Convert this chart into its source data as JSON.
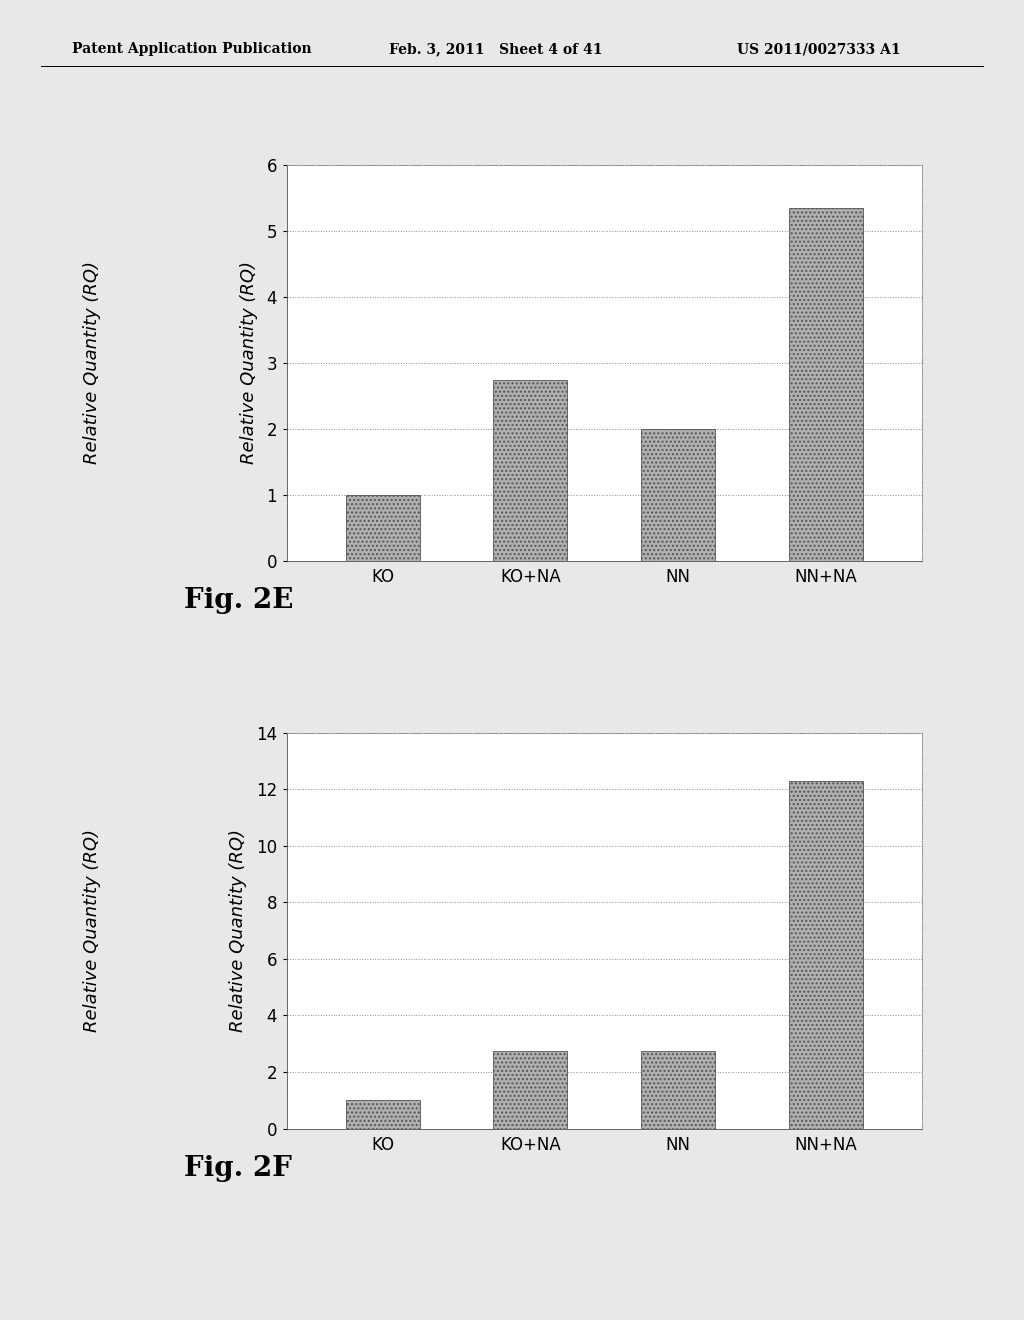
{
  "header_left": "Patent Application Publication",
  "header_mid": "Feb. 3, 2011   Sheet 4 of 41",
  "header_right": "US 2011/0027333 A1",
  "chart1": {
    "categories": [
      "KO",
      "KO+NA",
      "NN",
      "NN+NA"
    ],
    "values": [
      1.0,
      2.75,
      2.0,
      5.35
    ],
    "ylabel": "Relative Quantity (RQ)",
    "ylim": [
      0,
      6
    ],
    "yticks": [
      0,
      1,
      2,
      3,
      4,
      5,
      6
    ],
    "fig_label": "Fig. 2E"
  },
  "chart2": {
    "categories": [
      "KO",
      "KO+NA",
      "NN",
      "NN+NA"
    ],
    "values": [
      1.0,
      2.75,
      2.75,
      12.3
    ],
    "ylabel": "Relative Quantity (RQ)",
    "ylim": [
      0,
      14
    ],
    "yticks": [
      0,
      2,
      4,
      6,
      8,
      10,
      12,
      14
    ],
    "fig_label": "Fig. 2F"
  },
  "bar_color": "#b0b0b0",
  "bar_hatch": "....",
  "background_color": "#e8e8e8",
  "chart_bg": "#ffffff",
  "grid_color": "#888888",
  "header_fontsize": 10,
  "ylabel_fontsize": 13,
  "tick_fontsize": 12,
  "figlabel_fontsize": 20
}
